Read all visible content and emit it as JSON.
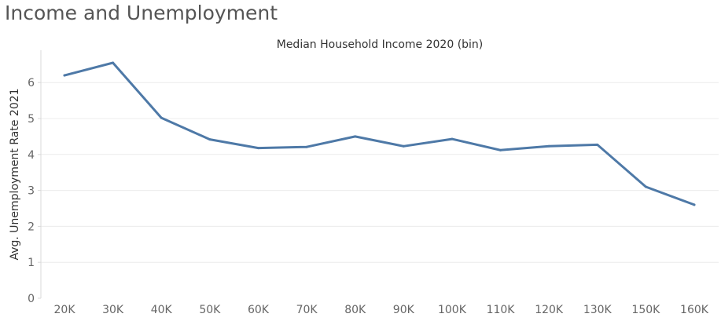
{
  "page": {
    "title": "Income and Unemployment"
  },
  "colors": {
    "line": "#4e79a7",
    "grid": "#ececec",
    "axis": "#d9d9d9"
  },
  "chart_data": {
    "type": "line",
    "title": "Median Household Income 2020 (bin)",
    "xlabel": "",
    "ylabel": "Avg. Unemployment Rate 2021",
    "categories": [
      "20K",
      "30K",
      "40K",
      "50K",
      "60K",
      "70K",
      "80K",
      "90K",
      "100K",
      "110K",
      "120K",
      "130K",
      "150K",
      "160K"
    ],
    "values": [
      6.2,
      6.55,
      5.02,
      4.42,
      4.18,
      4.21,
      4.5,
      4.23,
      4.43,
      4.12,
      4.23,
      4.27,
      3.1,
      2.6
    ],
    "ylim": [
      0,
      6.9
    ],
    "yticks": [
      0,
      1,
      2,
      3,
      4,
      5,
      6
    ],
    "grid": true,
    "legend": "none"
  }
}
